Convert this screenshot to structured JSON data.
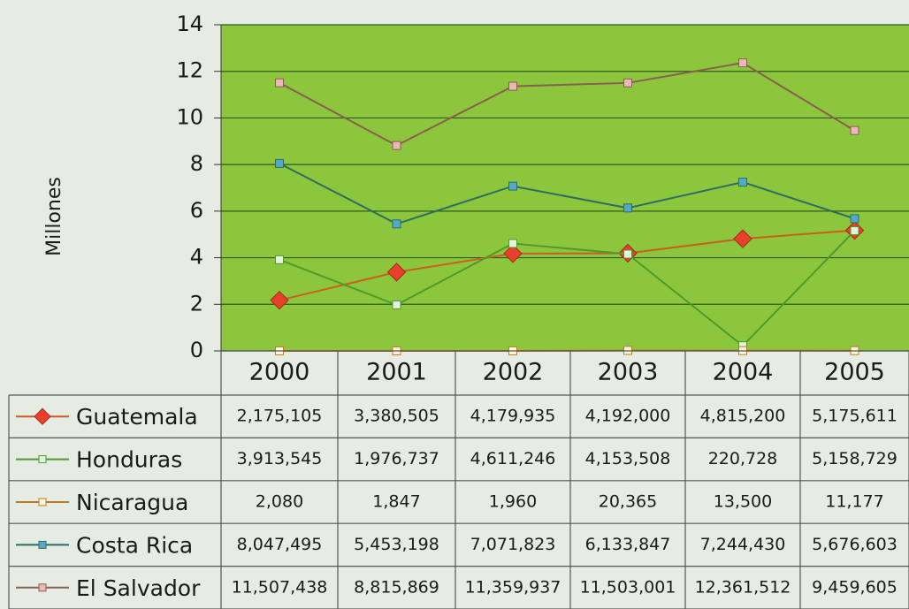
{
  "chart_data": {
    "type": "line",
    "y_label": "Millones",
    "categories": [
      "2000",
      "2001",
      "2002",
      "2003",
      "2004",
      "2005"
    ],
    "series": [
      {
        "name": "Guatemala",
        "color": "#c8601e",
        "marker_color": "#e8402a",
        "marker": "diamond",
        "values": [
          2175105,
          3380505,
          4179935,
          4192000,
          4815200,
          5175611
        ],
        "value_labels": [
          "2,175,105",
          "3,380,505",
          "4,179,935",
          "4,192,000",
          "4,815,200",
          "5,175,611"
        ]
      },
      {
        "name": "Honduras",
        "color": "#4f9a2a",
        "marker_color": "#e4f2e0",
        "marker": "square",
        "values": [
          3913545,
          1976737,
          4611246,
          4153508,
          220728,
          5158729
        ],
        "value_labels": [
          "3,913,545",
          "1,976,737",
          "4,611,246",
          "4,153,508",
          "220,728",
          "5,158,729"
        ]
      },
      {
        "name": "Nicaragua",
        "color": "#c07a22",
        "marker_color": "#fff8dc",
        "marker": "square",
        "values": [
          2080,
          1847,
          1960,
          20365,
          13500,
          11177
        ],
        "value_labels": [
          "2,080",
          "1,847",
          "1,960",
          "20,365",
          "13,500",
          "11,177"
        ]
      },
      {
        "name": "Costa Rica",
        "color": "#2c6e62",
        "marker_color": "#56a8c8",
        "marker": "square",
        "values": [
          8047495,
          5453198,
          7071823,
          6133847,
          7244430,
          5676603
        ],
        "value_labels": [
          "8,047,495",
          "5,453,198",
          "7,071,823",
          "6,133,847",
          "7,244,430",
          "5,676,603"
        ]
      },
      {
        "name": "El Salvador",
        "color": "#8a5e50",
        "marker_color": "#eab8b8",
        "marker": "square",
        "values": [
          11507438,
          8815869,
          11359937,
          11503001,
          12361512,
          9459605
        ],
        "value_labels": [
          "11,507,438",
          "8,815,869",
          "11,359,937",
          "11,503,001",
          "12,361,512",
          "9,459,605"
        ]
      }
    ],
    "ylim": [
      0,
      14000000
    ],
    "yticks": [
      {
        "value": 0,
        "label": "0"
      },
      {
        "value": 2000000,
        "label": "2"
      },
      {
        "value": 4000000,
        "label": "4"
      },
      {
        "value": 6000000,
        "label": "6"
      },
      {
        "value": 8000000,
        "label": "8"
      },
      {
        "value": 10000000,
        "label": "10"
      },
      {
        "value": 12000000,
        "label": "12"
      },
      {
        "value": 14000000,
        "label": "14"
      }
    ],
    "grid": true
  }
}
